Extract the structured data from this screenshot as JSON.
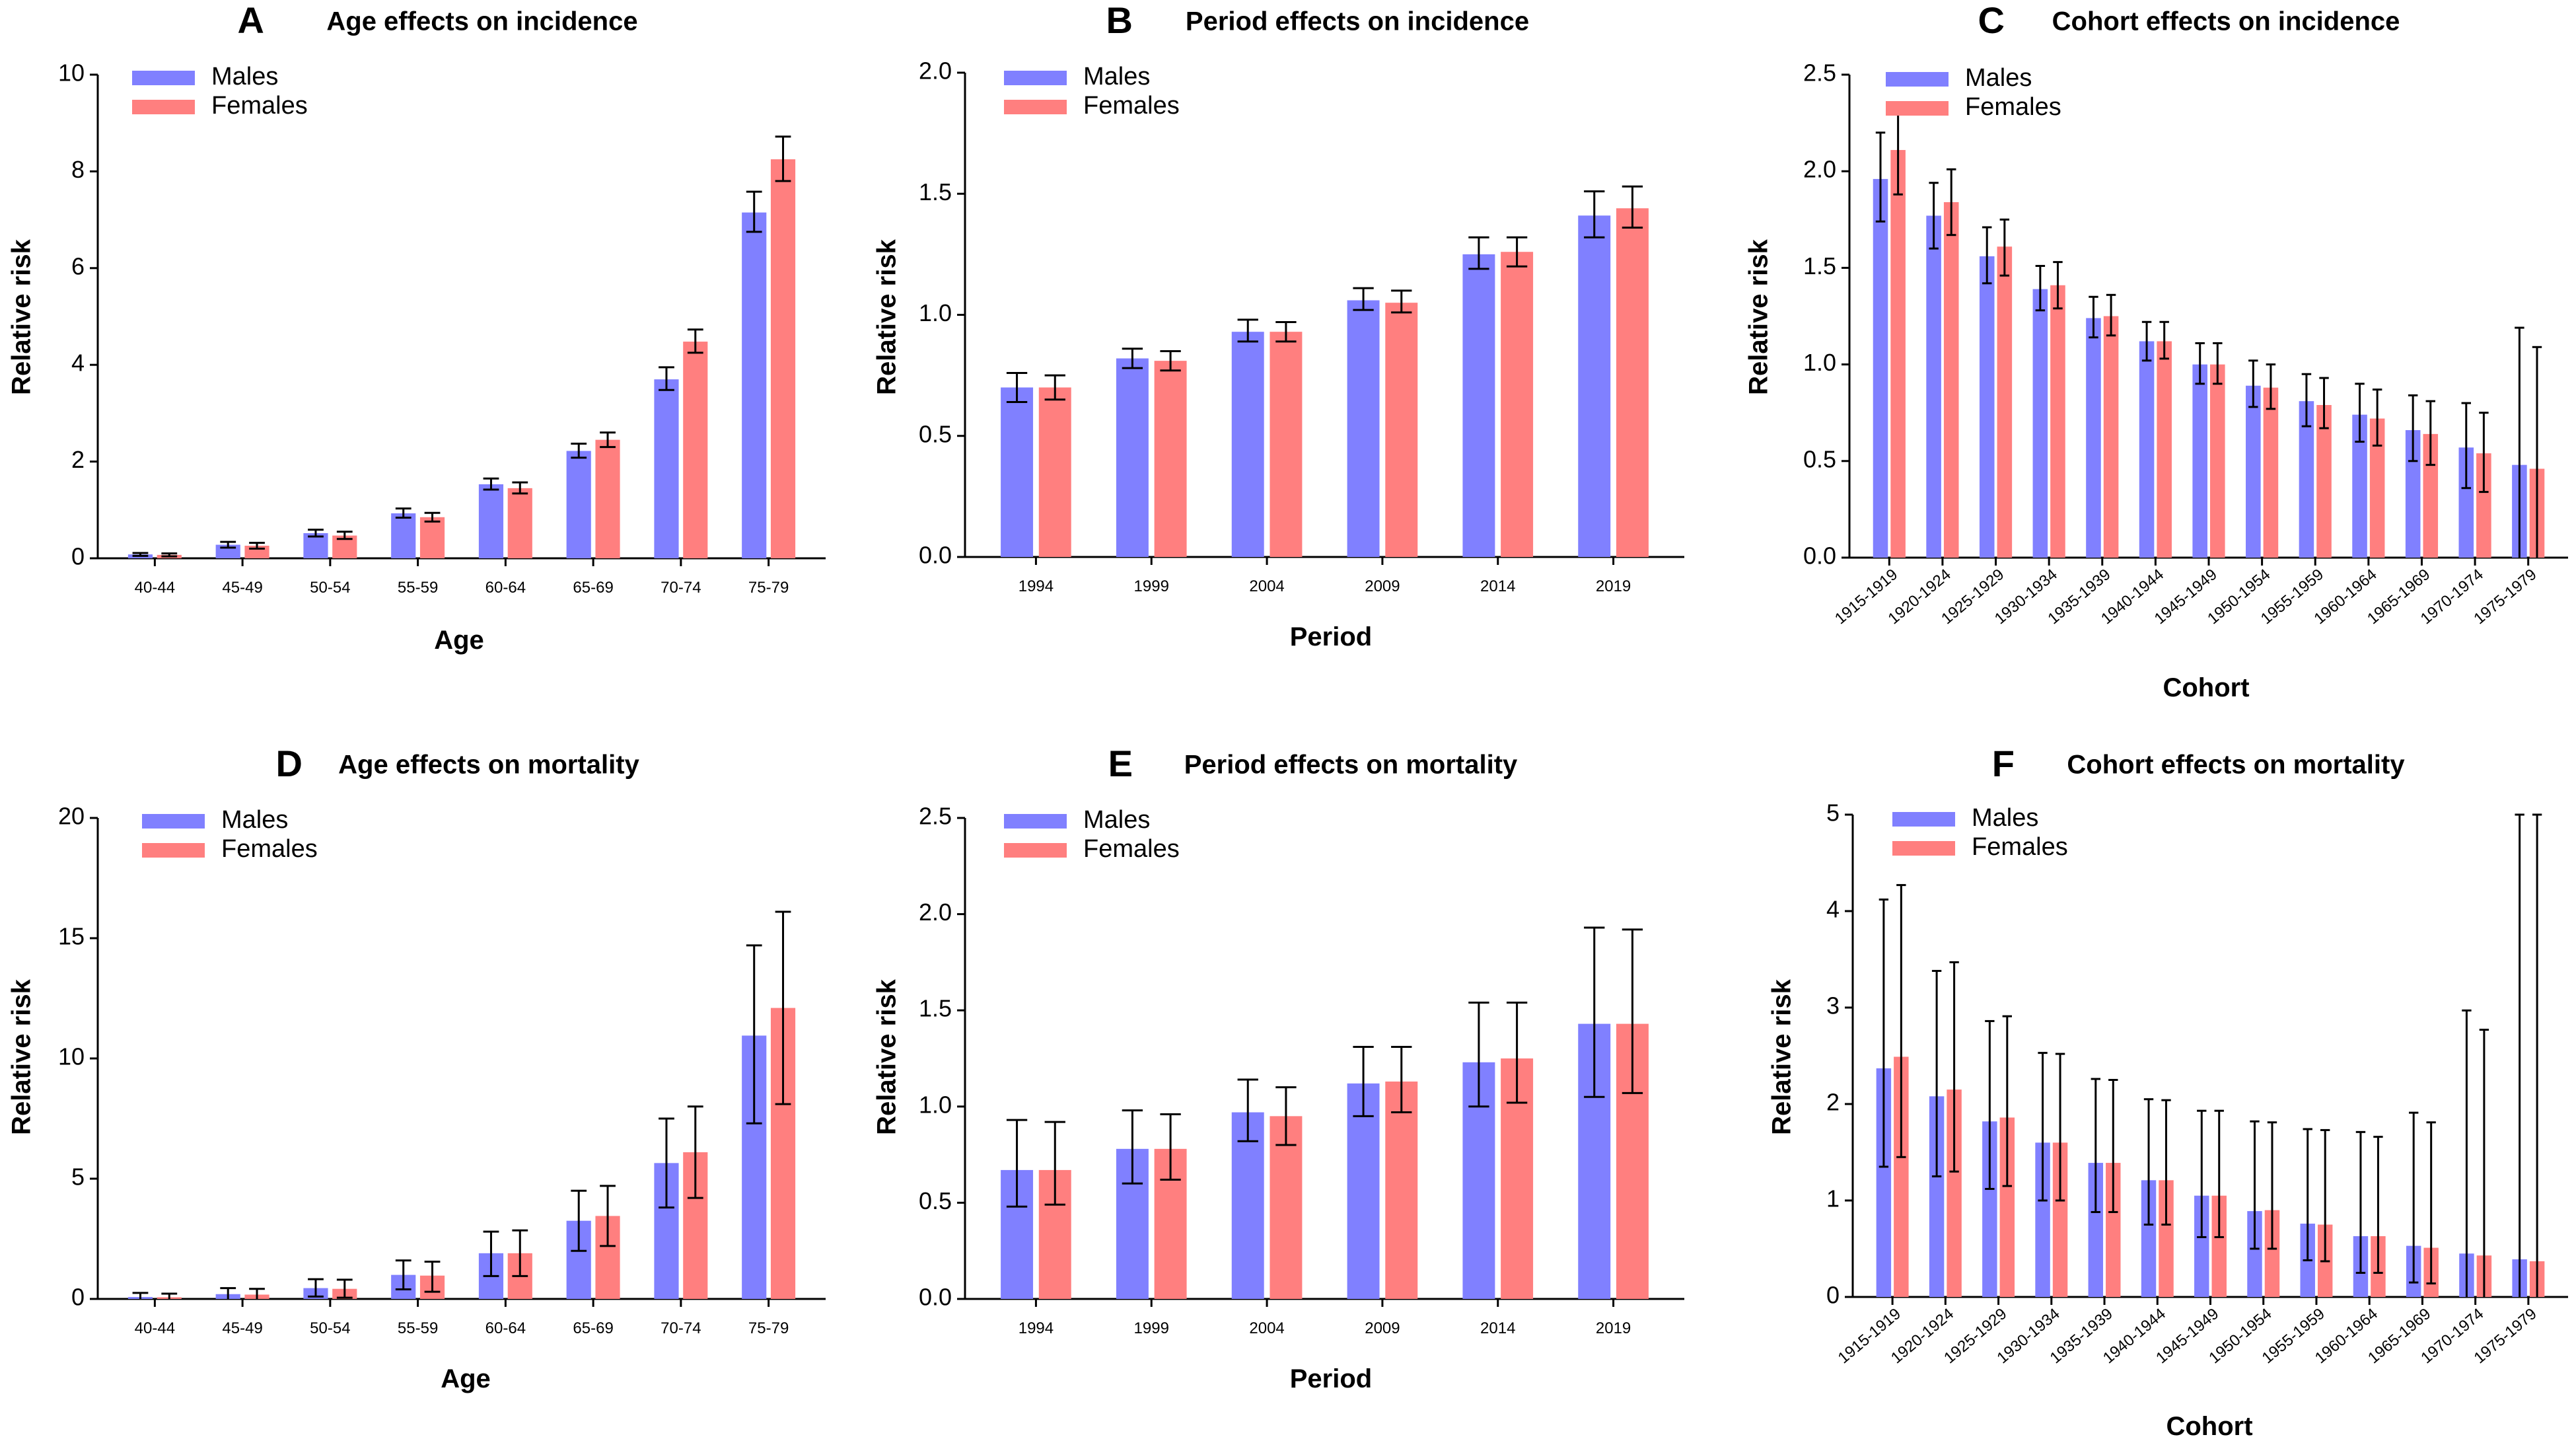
{
  "colors": {
    "males": "#8080FF",
    "females": "#FF7F7F"
  },
  "chart_data": [
    {
      "type": "bar",
      "letter": "A",
      "title": "Age effects on incidence",
      "xlabel": "Age",
      "ylabel": "Relative risk",
      "ylim": [
        0,
        10
      ],
      "yticks": [
        "0",
        "2",
        "4",
        "6",
        "8",
        "10"
      ],
      "categories": [
        "40-44",
        "45-49",
        "50-54",
        "55-59",
        "60-64",
        "65-69",
        "70-74",
        "75-79"
      ],
      "legend": {
        "position": "top-left",
        "entries": [
          "Males",
          "Females"
        ]
      },
      "series": [
        {
          "name": "Males",
          "values": [
            0.08,
            0.28,
            0.52,
            0.93,
            1.53,
            2.22,
            3.7,
            7.15
          ],
          "lower": [
            0.05,
            0.22,
            0.45,
            0.84,
            1.42,
            2.08,
            3.48,
            6.75
          ],
          "upper": [
            0.11,
            0.34,
            0.59,
            1.03,
            1.65,
            2.37,
            3.95,
            7.58
          ]
        },
        {
          "name": "Females",
          "values": [
            0.07,
            0.26,
            0.47,
            0.85,
            1.45,
            2.45,
            4.48,
            8.25
          ],
          "lower": [
            0.04,
            0.2,
            0.4,
            0.76,
            1.34,
            2.3,
            4.25,
            7.8
          ],
          "upper": [
            0.1,
            0.32,
            0.55,
            0.94,
            1.57,
            2.6,
            4.73,
            8.72
          ]
        }
      ]
    },
    {
      "type": "bar",
      "letter": "B",
      "title": "Period effects on incidence",
      "xlabel": "Period",
      "ylabel": "Relative risk",
      "ylim": [
        0,
        2
      ],
      "yticks": [
        "0.0",
        "0.5",
        "1.0",
        "1.5",
        "2.0"
      ],
      "categories": [
        "1994",
        "1999",
        "2004",
        "2009",
        "2014",
        "2019"
      ],
      "legend": {
        "position": "top-left",
        "entries": [
          "Males",
          "Females"
        ]
      },
      "series": [
        {
          "name": "Males",
          "values": [
            0.7,
            0.82,
            0.93,
            1.06,
            1.25,
            1.41
          ],
          "lower": [
            0.64,
            0.78,
            0.89,
            1.02,
            1.19,
            1.32
          ],
          "upper": [
            0.76,
            0.86,
            0.98,
            1.11,
            1.32,
            1.51
          ]
        },
        {
          "name": "Females",
          "values": [
            0.7,
            0.81,
            0.93,
            1.05,
            1.26,
            1.44
          ],
          "lower": [
            0.65,
            0.77,
            0.89,
            1.01,
            1.2,
            1.36
          ],
          "upper": [
            0.75,
            0.85,
            0.97,
            1.1,
            1.32,
            1.53
          ]
        }
      ]
    },
    {
      "type": "bar",
      "letter": "C",
      "title": "Cohort effects on incidence",
      "xlabel": "Cohort",
      "ylabel": "Relative risk",
      "ylim": [
        0,
        2.5
      ],
      "yticks": [
        "0.0",
        "0.5",
        "1.0",
        "1.5",
        "2.0",
        "2.5"
      ],
      "categories": [
        "1915-1919",
        "1920-1924",
        "1925-1929",
        "1930-1934",
        "1935-1939",
        "1940-1944",
        "1945-1949",
        "1950-1954",
        "1955-1959",
        "1960-1964",
        "1965-1969",
        "1970-1974",
        "1975-1979"
      ],
      "legend": {
        "position": "top-left",
        "entries": [
          "Males",
          "Females"
        ]
      },
      "series": [
        {
          "name": "Males",
          "values": [
            1.96,
            1.77,
            1.56,
            1.39,
            1.24,
            1.12,
            1.0,
            0.89,
            0.81,
            0.74,
            0.66,
            0.57,
            0.48
          ],
          "lower": [
            1.74,
            1.6,
            1.42,
            1.28,
            1.14,
            1.02,
            0.9,
            0.78,
            0.68,
            0.6,
            0.5,
            0.36,
            0.0
          ],
          "upper": [
            2.2,
            1.94,
            1.71,
            1.51,
            1.35,
            1.22,
            1.11,
            1.02,
            0.95,
            0.9,
            0.84,
            0.8,
            1.19
          ]
        },
        {
          "name": "Females",
          "values": [
            2.11,
            1.84,
            1.61,
            1.41,
            1.25,
            1.12,
            1.0,
            0.88,
            0.79,
            0.72,
            0.64,
            0.54,
            0.46
          ],
          "lower": [
            1.88,
            1.67,
            1.46,
            1.29,
            1.15,
            1.03,
            0.9,
            0.77,
            0.67,
            0.58,
            0.48,
            0.34,
            0.0
          ],
          "upper": [
            2.34,
            2.01,
            1.75,
            1.53,
            1.36,
            1.22,
            1.11,
            1.0,
            0.93,
            0.87,
            0.81,
            0.75,
            1.09
          ]
        }
      ]
    },
    {
      "type": "bar",
      "letter": "D",
      "title": "Age effects on mortality",
      "xlabel": "Age",
      "ylabel": "Relative risk",
      "ylim": [
        0,
        20
      ],
      "yticks": [
        "0",
        "5",
        "10",
        "15",
        "20"
      ],
      "categories": [
        "40-44",
        "45-49",
        "50-54",
        "55-59",
        "60-64",
        "65-69",
        "70-74",
        "75-79"
      ],
      "legend": {
        "position": "top-left",
        "entries": [
          "Males",
          "Females"
        ]
      },
      "series": [
        {
          "name": "Males",
          "values": [
            0.08,
            0.2,
            0.45,
            1.0,
            1.9,
            3.25,
            5.65,
            10.95
          ],
          "lower": [
            0.0,
            0.0,
            0.1,
            0.4,
            0.95,
            2.0,
            3.8,
            7.3
          ],
          "upper": [
            0.25,
            0.45,
            0.82,
            1.6,
            2.8,
            4.5,
            7.5,
            14.7
          ]
        },
        {
          "name": "Females",
          "values": [
            0.07,
            0.18,
            0.42,
            0.97,
            1.9,
            3.45,
            6.1,
            12.1
          ],
          "lower": [
            0.0,
            0.0,
            0.05,
            0.3,
            0.95,
            2.2,
            4.2,
            8.1
          ],
          "upper": [
            0.22,
            0.42,
            0.8,
            1.55,
            2.85,
            4.7,
            8.0,
            16.1
          ]
        }
      ]
    },
    {
      "type": "bar",
      "letter": "E",
      "title": "Period effects on mortality",
      "xlabel": "Period",
      "ylabel": "Relative risk",
      "ylim": [
        0,
        2.5
      ],
      "yticks": [
        "0.0",
        "0.5",
        "1.0",
        "1.5",
        "2.0",
        "2.5"
      ],
      "categories": [
        "1994",
        "1999",
        "2004",
        "2009",
        "2014",
        "2019"
      ],
      "legend": {
        "position": "top-left",
        "entries": [
          "Males",
          "Females"
        ]
      },
      "series": [
        {
          "name": "Males",
          "values": [
            0.67,
            0.78,
            0.97,
            1.12,
            1.23,
            1.43
          ],
          "lower": [
            0.48,
            0.6,
            0.82,
            0.95,
            1.0,
            1.05
          ],
          "upper": [
            0.93,
            0.98,
            1.14,
            1.31,
            1.54,
            1.93
          ]
        },
        {
          "name": "Females",
          "values": [
            0.67,
            0.78,
            0.95,
            1.13,
            1.25,
            1.43
          ],
          "lower": [
            0.49,
            0.62,
            0.8,
            0.97,
            1.02,
            1.07
          ],
          "upper": [
            0.92,
            0.96,
            1.1,
            1.31,
            1.54,
            1.92
          ]
        }
      ]
    },
    {
      "type": "bar",
      "letter": "F",
      "title": "Cohort effects on mortality",
      "xlabel": "Cohort",
      "ylabel": "Relative risk",
      "ylim": [
        0,
        5
      ],
      "yticks": [
        "0",
        "1",
        "2",
        "3",
        "4",
        "5"
      ],
      "categories": [
        "1915-1919",
        "1920-1924",
        "1925-1929",
        "1930-1934",
        "1935-1939",
        "1940-1944",
        "1945-1949",
        "1950-1954",
        "1955-1959",
        "1960-1964",
        "1965-1969",
        "1970-1974",
        "1975-1979"
      ],
      "legend": {
        "position": "top-left",
        "entries": [
          "Males",
          "Females"
        ]
      },
      "series": [
        {
          "name": "Males",
          "values": [
            2.37,
            2.08,
            1.82,
            1.6,
            1.39,
            1.21,
            1.05,
            0.89,
            0.76,
            0.63,
            0.53,
            0.45,
            0.39
          ],
          "lower": [
            1.35,
            1.25,
            1.12,
            1.0,
            0.88,
            0.75,
            0.62,
            0.5,
            0.38,
            0.25,
            0.15,
            0.0,
            0.0
          ],
          "upper": [
            4.12,
            3.38,
            2.86,
            2.53,
            2.26,
            2.05,
            1.93,
            1.82,
            1.74,
            1.71,
            1.91,
            2.97,
            5.0
          ]
        },
        {
          "name": "Females",
          "values": [
            2.49,
            2.15,
            1.86,
            1.6,
            1.39,
            1.21,
            1.05,
            0.9,
            0.75,
            0.63,
            0.51,
            0.43,
            0.37
          ],
          "lower": [
            1.45,
            1.3,
            1.15,
            1.0,
            0.88,
            0.75,
            0.62,
            0.5,
            0.37,
            0.25,
            0.14,
            0.0,
            0.0
          ],
          "upper": [
            4.27,
            3.47,
            2.91,
            2.52,
            2.25,
            2.04,
            1.93,
            1.81,
            1.73,
            1.66,
            1.81,
            2.77,
            5.0
          ]
        }
      ]
    }
  ]
}
